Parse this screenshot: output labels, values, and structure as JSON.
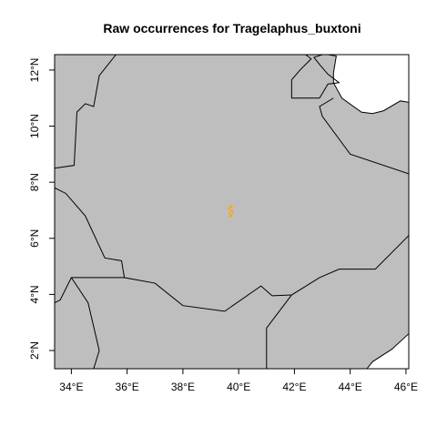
{
  "title": "Raw occurrences for Tragelaphus_buxtoni",
  "colors": {
    "land": "#bebebe",
    "sea": "#ffffff",
    "border": "#000000",
    "occurrence": "#ffa500"
  },
  "axes": {
    "x_ticks": [
      {
        "value": 34,
        "label": "34°E"
      },
      {
        "value": 36,
        "label": "36°E"
      },
      {
        "value": 38,
        "label": "38°E"
      },
      {
        "value": 40,
        "label": "40°E"
      },
      {
        "value": 42,
        "label": "42°E"
      },
      {
        "value": 44,
        "label": "44°E"
      },
      {
        "value": 46,
        "label": "46°E"
      }
    ],
    "y_ticks": [
      {
        "value": 2,
        "label": "2°N"
      },
      {
        "value": 4,
        "label": "4°N"
      },
      {
        "value": 6,
        "label": "6°N"
      },
      {
        "value": 8,
        "label": "8°N"
      },
      {
        "value": 10,
        "label": "10°N"
      },
      {
        "value": 12,
        "label": "12°N"
      }
    ],
    "xlim": [
      33.4,
      46.1
    ],
    "ylim": [
      1.35,
      12.55
    ]
  },
  "chart_data": {
    "type": "scatter",
    "title": "Raw occurrences for Tragelaphus_buxtoni",
    "xlabel": "",
    "ylabel": "",
    "xlim": [
      33.4,
      46.1
    ],
    "ylim": [
      1.35,
      12.55
    ],
    "series": [
      {
        "color": "#ffa500",
        "points": [
          {
            "lon": 39.7,
            "lat": 7.15
          },
          {
            "lon": 39.75,
            "lat": 7.1
          },
          {
            "lon": 39.65,
            "lat": 7.05
          },
          {
            "lon": 39.72,
            "lat": 6.98
          },
          {
            "lon": 39.78,
            "lat": 6.95
          },
          {
            "lon": 39.68,
            "lat": 6.88
          },
          {
            "lon": 39.74,
            "lat": 6.82
          },
          {
            "lon": 39.7,
            "lat": 6.78
          }
        ]
      }
    ]
  },
  "sea_areas": [
    [
      [
        43.2,
        12.55
      ],
      [
        46.1,
        12.55
      ],
      [
        46.1,
        10.85
      ],
      [
        45.8,
        10.9
      ],
      [
        45.2,
        10.55
      ],
      [
        44.8,
        10.45
      ],
      [
        44.4,
        10.5
      ],
      [
        43.7,
        11.0
      ],
      [
        43.4,
        11.55
      ],
      [
        43.4,
        11.9
      ],
      [
        43.5,
        12.5
      ]
    ],
    [
      [
        44.6,
        1.35
      ],
      [
        46.1,
        1.35
      ],
      [
        46.1,
        2.6
      ],
      [
        45.5,
        2.05
      ],
      [
        44.8,
        1.6
      ]
    ]
  ],
  "borders": [
    [
      [
        33.4,
        8.5
      ],
      [
        34.1,
        8.6
      ],
      [
        34.2,
        10.5
      ],
      [
        34.5,
        10.8
      ],
      [
        34.8,
        10.7
      ],
      [
        35.0,
        11.8
      ],
      [
        35.6,
        12.55
      ]
    ],
    [
      [
        42.4,
        12.55
      ],
      [
        42.6,
        12.4
      ],
      [
        42.2,
        12.0
      ],
      [
        41.9,
        11.65
      ],
      [
        41.9,
        11.0
      ],
      [
        42.9,
        11.0
      ],
      [
        43.2,
        11.5
      ],
      [
        43.6,
        11.55
      ],
      [
        43.2,
        11.85
      ],
      [
        42.9,
        12.2
      ],
      [
        42.7,
        12.45
      ],
      [
        43.0,
        12.55
      ]
    ],
    [
      [
        43.4,
        11.0
      ],
      [
        42.9,
        10.7
      ],
      [
        43.0,
        10.35
      ],
      [
        44.0,
        9.0
      ],
      [
        46.1,
        8.3
      ]
    ],
    [
      [
        33.4,
        7.8
      ],
      [
        33.8,
        7.6
      ],
      [
        34.5,
        6.8
      ],
      [
        35.2,
        5.3
      ],
      [
        35.8,
        5.2
      ],
      [
        35.9,
        4.6
      ],
      [
        37.0,
        4.4
      ],
      [
        38.0,
        3.6
      ],
      [
        39.5,
        3.4
      ],
      [
        40.8,
        4.3
      ],
      [
        41.2,
        3.95
      ],
      [
        41.9,
        3.98
      ],
      [
        42.9,
        4.6
      ],
      [
        43.6,
        4.9
      ],
      [
        44.9,
        4.9
      ],
      [
        46.1,
        6.1
      ]
    ],
    [
      [
        33.4,
        3.7
      ],
      [
        33.6,
        3.8
      ],
      [
        34.0,
        4.6
      ],
      [
        35.9,
        4.6
      ]
    ],
    [
      [
        34.0,
        4.6
      ],
      [
        34.6,
        3.7
      ],
      [
        35.0,
        2.0
      ],
      [
        34.8,
        1.35
      ]
    ],
    [
      [
        41.9,
        3.98
      ],
      [
        41.0,
        2.8
      ],
      [
        41.0,
        1.35
      ]
    ]
  ]
}
